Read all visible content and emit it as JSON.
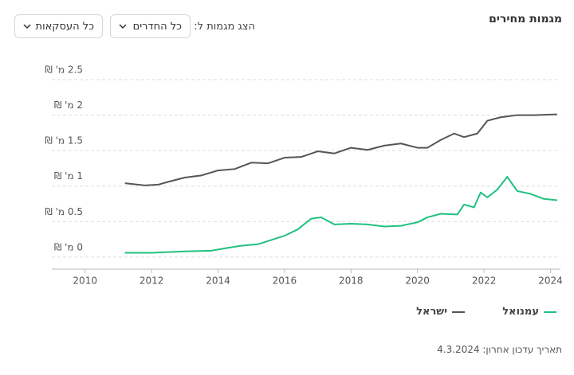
{
  "header": {
    "title": "מגמות מחירים",
    "filter_label": "הצג מגמות ל:",
    "rooms_dropdown": "כל החדרים",
    "deals_dropdown": "כל העסקאות"
  },
  "chart_data": {
    "type": "line",
    "xlim": [
      2009,
      2024.3
    ],
    "xticks": [
      2010,
      2012,
      2014,
      2016,
      2018,
      2020,
      2022,
      2024
    ],
    "ylim": [
      -0.17,
      2.5
    ],
    "yticks": [
      {
        "value": 0,
        "label": "0 מ' ₪"
      },
      {
        "value": 0.5,
        "label": "0.5 מ' ₪"
      },
      {
        "value": 1,
        "label": "1 מ' ₪"
      },
      {
        "value": 1.5,
        "label": "1.5 מ' ₪"
      },
      {
        "value": 2,
        "label": "2 מ' ₪"
      },
      {
        "value": 2.5,
        "label": "2.5 מ' ₪"
      }
    ],
    "grid": true,
    "series": [
      {
        "name": "עמנואל",
        "color": "#22c07f",
        "x": [
          2011.2,
          2012,
          2012.5,
          2013,
          2013.8,
          2014.3,
          2014.7,
          2015.2,
          2015.6,
          2016,
          2016.4,
          2016.8,
          2017.1,
          2017.5,
          2018,
          2018.5,
          2019,
          2019.5,
          2020,
          2020.3,
          2020.7,
          2021.2,
          2021.4,
          2021.7,
          2021.9,
          2022.1,
          2022.4,
          2022.7,
          2023,
          2023.4,
          2023.8,
          2024.2
        ],
        "values": [
          0.06,
          0.06,
          0.07,
          0.08,
          0.09,
          0.13,
          0.16,
          0.18,
          0.24,
          0.3,
          0.39,
          0.54,
          0.56,
          0.46,
          0.47,
          0.46,
          0.43,
          0.44,
          0.49,
          0.56,
          0.61,
          0.6,
          0.74,
          0.7,
          0.91,
          0.84,
          0.95,
          1.13,
          0.93,
          0.89,
          0.82,
          0.8
        ]
      },
      {
        "name": "ישראל",
        "color": "#555555",
        "x": [
          2011.2,
          2011.8,
          2012.2,
          2012.5,
          2013,
          2013.5,
          2014,
          2014.5,
          2015,
          2015.5,
          2016,
          2016.5,
          2017,
          2017.5,
          2018,
          2018.5,
          2019,
          2019.5,
          2020,
          2020.3,
          2020.7,
          2021.1,
          2021.4,
          2021.8,
          2022.1,
          2022.5,
          2023,
          2023.5,
          2024.2
        ],
        "values": [
          1.04,
          1.01,
          1.02,
          1.06,
          1.12,
          1.15,
          1.22,
          1.24,
          1.33,
          1.32,
          1.4,
          1.41,
          1.49,
          1.46,
          1.54,
          1.51,
          1.57,
          1.6,
          1.54,
          1.54,
          1.65,
          1.74,
          1.69,
          1.74,
          1.92,
          1.97,
          2,
          2,
          2.01
        ]
      }
    ]
  },
  "footer": {
    "last_update": "תאריך עדכון אחרון: 4.3.2024"
  }
}
